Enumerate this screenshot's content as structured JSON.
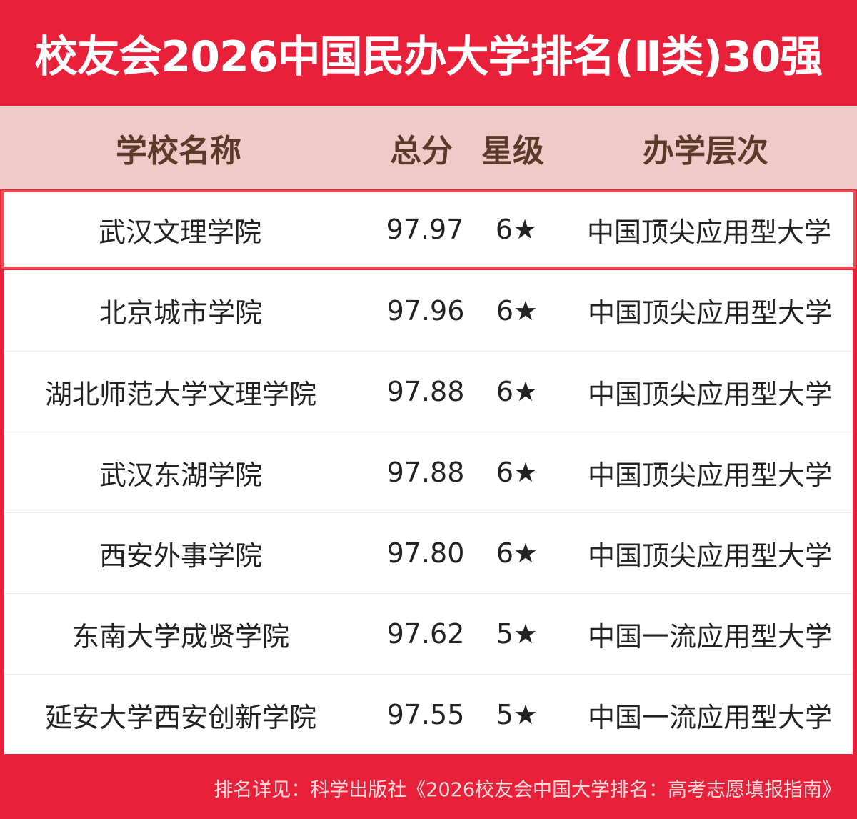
{
  "title": "校友会2026中国民办大学排名(Ⅱ类)30强",
  "columns": {
    "name": "学校名称",
    "score": "总分",
    "stars": "星级",
    "level": "办学层次"
  },
  "rows": [
    {
      "name": "武汉文理学院",
      "score": "97.97",
      "stars": "6★",
      "level": "中国顶尖应用型大学"
    },
    {
      "name": "北京城市学院",
      "score": "97.96",
      "stars": "6★",
      "level": "中国顶尖应用型大学"
    },
    {
      "name": "湖北师范大学文理学院",
      "score": "97.88",
      "stars": "6★",
      "level": "中国顶尖应用型大学"
    },
    {
      "name": "武汉东湖学院",
      "score": "97.88",
      "stars": "6★",
      "level": "中国顶尖应用型大学"
    },
    {
      "name": "西安外事学院",
      "score": "97.80",
      "stars": "6★",
      "level": "中国顶尖应用型大学"
    },
    {
      "name": "东南大学成贤学院",
      "score": "97.62",
      "stars": "5★",
      "level": "中国一流应用型大学"
    },
    {
      "name": "延安大学西安创新学院",
      "score": "97.55",
      "stars": "5★",
      "level": "中国一流应用型大学"
    }
  ],
  "footer": "排名详见：科学出版社《2026校友会中国大学排名：高考志愿填报指南》",
  "colors": {
    "brand_red": "#e8203a",
    "header_bg": "#f0c9c9",
    "header_text": "#5a3a28",
    "highlight_border": "#ef4a4f"
  }
}
